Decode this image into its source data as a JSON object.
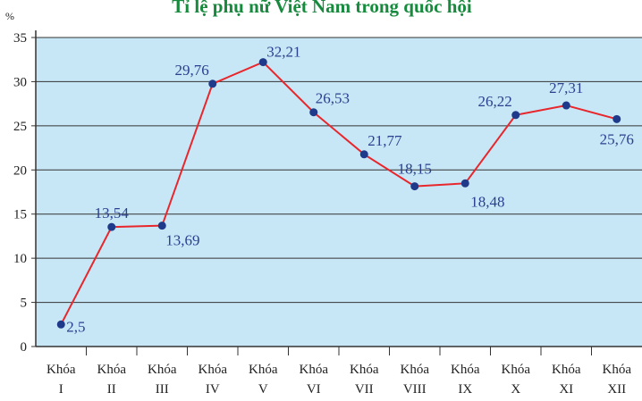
{
  "chart_data": {
    "type": "line",
    "title": "Tỉ lệ phụ nữ Việt Nam trong quốc hội",
    "y_label": "%",
    "categories": [
      "Khóa I",
      "Khóa II",
      "Khóa III",
      "Khóa IV",
      "Khóa V",
      "Khóa VI",
      "Khóa VII",
      "Khóa VIII",
      "Khóa IX",
      "Khóa X",
      "Khóa XI",
      "Khóa XII"
    ],
    "series": [
      {
        "color": "#e8262b",
        "values": [
          2.5,
          13.54,
          13.69,
          29.76,
          32.21,
          26.53,
          21.77,
          18.15,
          18.48,
          26.22,
          27.31,
          25.76
        ],
        "value_labels": [
          "2,5",
          "13,54",
          "13,69",
          "29,76",
          "32,21",
          "26,53",
          "21,77",
          "18,15",
          "18,48",
          "26,22",
          "27,31",
          "25,76"
        ]
      }
    ],
    "marker_color": "#1f3a8a",
    "ylim": [
      0,
      35
    ],
    "yticks": [
      0,
      5,
      10,
      15,
      20,
      25,
      30,
      35
    ],
    "grid": true
  }
}
